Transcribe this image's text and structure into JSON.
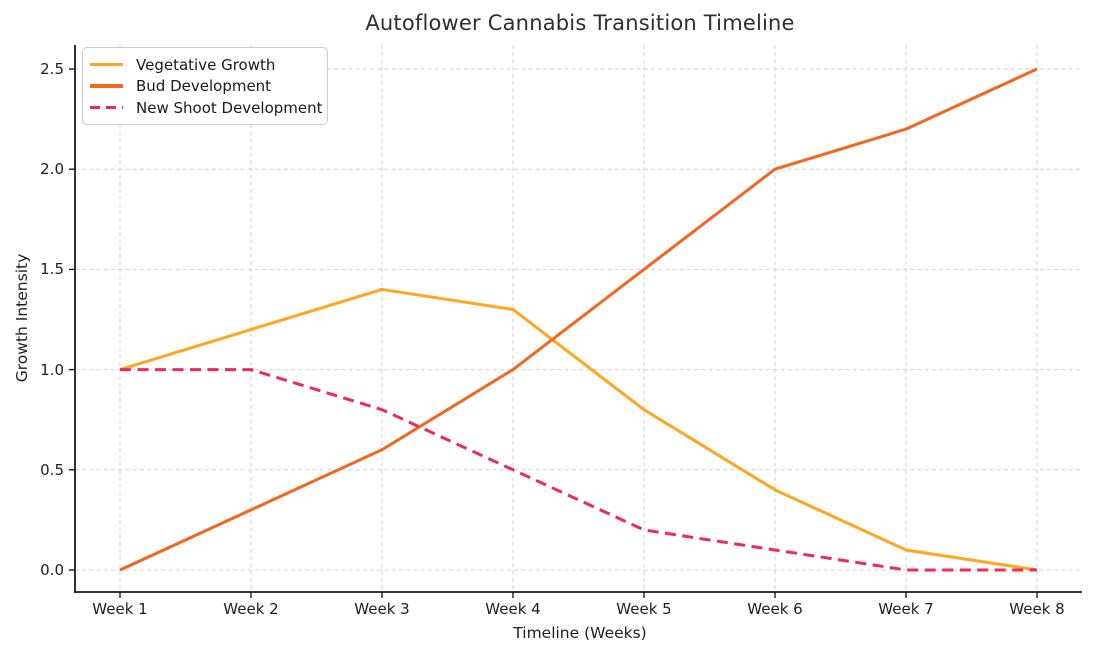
{
  "chart_data": {
    "type": "line",
    "title": "Autoflower Cannabis Transition Timeline",
    "xlabel": "Timeline (Weeks)",
    "ylabel": "Growth Intensity",
    "categories": [
      "Week 1",
      "Week 2",
      "Week 3",
      "Week 4",
      "Week 5",
      "Week 6",
      "Week 7",
      "Week 8"
    ],
    "y_ticks": [
      0.0,
      0.5,
      1.0,
      1.5,
      2.0,
      2.5
    ],
    "y_tick_labels": [
      "0.0",
      "0.5",
      "1.0",
      "1.5",
      "2.0",
      "2.5"
    ],
    "ylim": [
      0,
      2.5
    ],
    "grid": true,
    "grid_style": "dashed",
    "legend_position": "upper-left",
    "series": [
      {
        "name": "Vegetative Growth",
        "color": "#FFA51E",
        "line_style": "solid",
        "values": [
          1.0,
          1.2,
          1.4,
          1.3,
          0.8,
          0.4,
          0.1,
          0.0
        ]
      },
      {
        "name": "Bud Development",
        "color": "#F2661E",
        "line_style": "solid",
        "values": [
          0.0,
          0.3,
          0.6,
          1.0,
          1.5,
          2.0,
          2.2,
          2.5
        ]
      },
      {
        "name": "New Shoot Development",
        "color": "#F0295A",
        "line_style": "dashed",
        "values": [
          1.0,
          1.0,
          0.8,
          0.5,
          0.2,
          0.1,
          0.0,
          0.0
        ]
      }
    ],
    "colors": {
      "axis": "#1a1a1a",
      "grid": "#d3d3d3",
      "text": "#1f1f1f",
      "background": "#ffffff",
      "legend_border": "#cccccc"
    }
  }
}
